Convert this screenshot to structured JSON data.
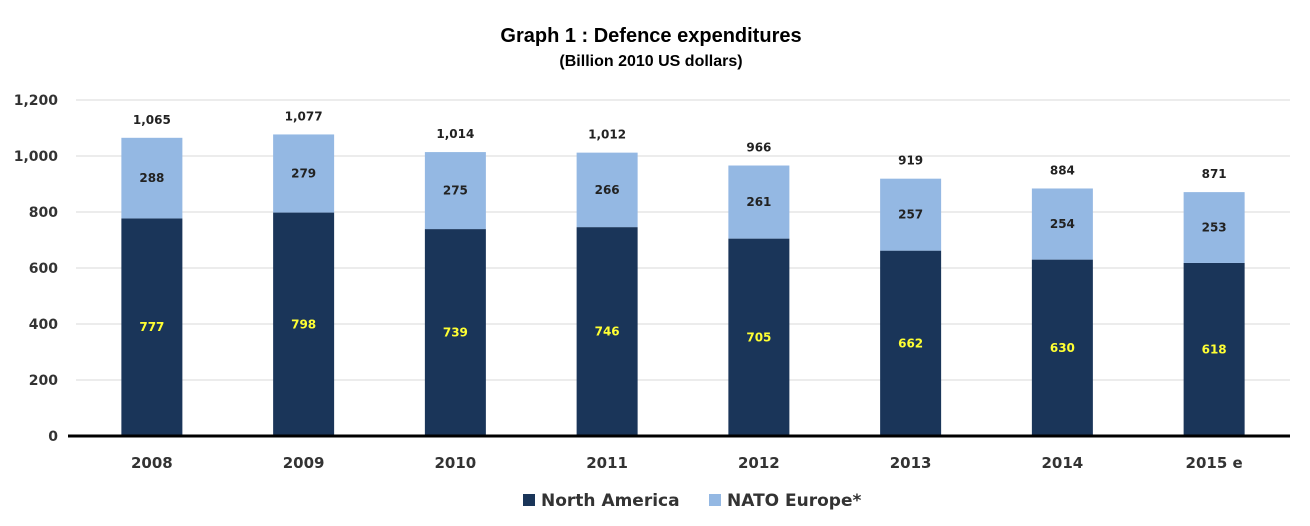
{
  "chart_data": {
    "type": "bar",
    "stacked": true,
    "title": "Graph 1 : Defence expenditures",
    "subtitle": "(Billion 2010 US dollars)",
    "xlabel": "",
    "ylabel": "",
    "categories": [
      "2008",
      "2009",
      "2010",
      "2011",
      "2012",
      "2013",
      "2014",
      "2015 e"
    ],
    "series": [
      {
        "name": "North America",
        "color": "#1a3559",
        "values": [
          777,
          798,
          739,
          746,
          705,
          662,
          630,
          618
        ]
      },
      {
        "name": "NATO Europe*",
        "color": "#94b8e3",
        "values": [
          288,
          279,
          275,
          266,
          261,
          257,
          254,
          253
        ]
      }
    ],
    "totals": [
      "1,065",
      "1,077",
      "1,014",
      "1,012",
      "966",
      "919",
      "884",
      "871"
    ],
    "ylim": [
      0,
      1200
    ],
    "yticks": [
      "0",
      "200",
      "400",
      "600",
      "800",
      "1,000",
      "1,200"
    ],
    "grid": true,
    "legend_position": "bottom-center"
  }
}
